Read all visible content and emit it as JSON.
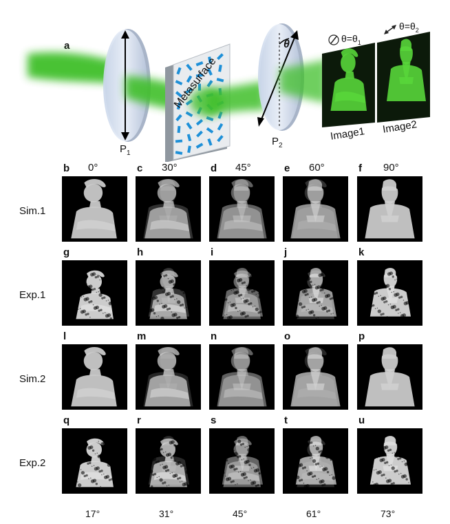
{
  "panel_a": {
    "letter": "a",
    "metasurface_label": "Metasurface",
    "polarizer1_label": "P",
    "polarizer1_sub": "1",
    "polarizer2_label": "P",
    "polarizer2_sub": "2",
    "theta_symbol": "θ",
    "image1": {
      "caption": "Image1",
      "header_base": "θ=θ",
      "header_sub": "1"
    },
    "image2": {
      "caption": "Image2",
      "header_base": "θ=θ",
      "header_sub": "2"
    }
  },
  "top_angles": [
    "0°",
    "30°",
    "45°",
    "60°",
    "90°"
  ],
  "bottom_angles": [
    "17°",
    "31°",
    "45°",
    "61°",
    "73°"
  ],
  "rows": [
    {
      "label": "Sim.1",
      "letters": [
        "b",
        "c",
        "d",
        "e",
        "f"
      ],
      "blend": [
        0.0,
        0.25,
        0.5,
        0.75,
        1.0
      ],
      "noise": false
    },
    {
      "label": "Exp.1",
      "letters": [
        "g",
        "h",
        "i",
        "j",
        "k"
      ],
      "blend": [
        0.0,
        0.25,
        0.5,
        0.75,
        1.0
      ],
      "noise": true
    },
    {
      "label": "Sim.2",
      "letters": [
        "l",
        "m",
        "n",
        "o",
        "p"
      ],
      "blend": [
        0.0,
        0.2,
        0.5,
        0.8,
        1.0
      ],
      "noise": false
    },
    {
      "label": "Exp.2",
      "letters": [
        "q",
        "r",
        "s",
        "t",
        "u"
      ],
      "blend": [
        0.0,
        0.2,
        0.5,
        0.8,
        1.0
      ],
      "noise": true
    }
  ],
  "colors": {
    "beam": "#3fbf2a",
    "polarizer": "#dde8f7",
    "metasurface_element": "#1e90d8"
  }
}
